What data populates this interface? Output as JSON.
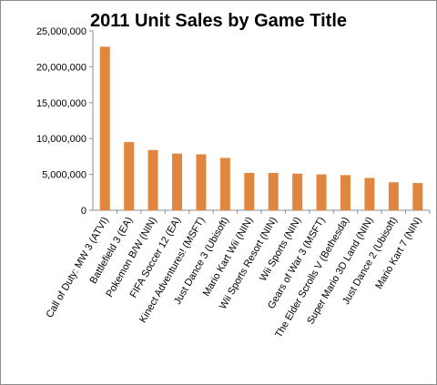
{
  "chart_data": {
    "type": "bar",
    "title": "2011 Unit Sales by Game Title",
    "xlabel": "",
    "ylabel": "",
    "ylim": [
      0,
      25000000
    ],
    "yticks": [
      0,
      5000000,
      10000000,
      15000000,
      20000000,
      25000000
    ],
    "ytick_labels": [
      "0",
      "5,000,000",
      "10,000,000",
      "15,000,000",
      "20,000,000",
      "25,000,000"
    ],
    "categories": [
      "Call of Duty: MW 3 (ATVI)",
      "Battlefield 3 (EA)",
      "Pokemon B/W (NIN)",
      "FIFA Soccer 12 (EA)",
      "Kinect Adventures! (MSFT)",
      "Just Dance 3 (Ubisoft)",
      "Mario Kart Wii (NIN)",
      "Wii Sports Resort (NIN)",
      "Wii Sports (NIN)",
      "Gears of War 3 (MSFT)",
      "The Elder Scrolls V (Bethesda)",
      "Super Mario 3D Land (NIN)",
      "Just Dance 2 (Ubisoft)",
      "Mario Kart 7 (NIN)"
    ],
    "values": [
      22800000,
      9500000,
      8400000,
      7900000,
      7800000,
      7300000,
      5200000,
      5200000,
      5100000,
      5000000,
      4900000,
      4500000,
      3900000,
      3800000
    ],
    "grid": false,
    "legend": "none",
    "bar_color": "#e0863f"
  }
}
